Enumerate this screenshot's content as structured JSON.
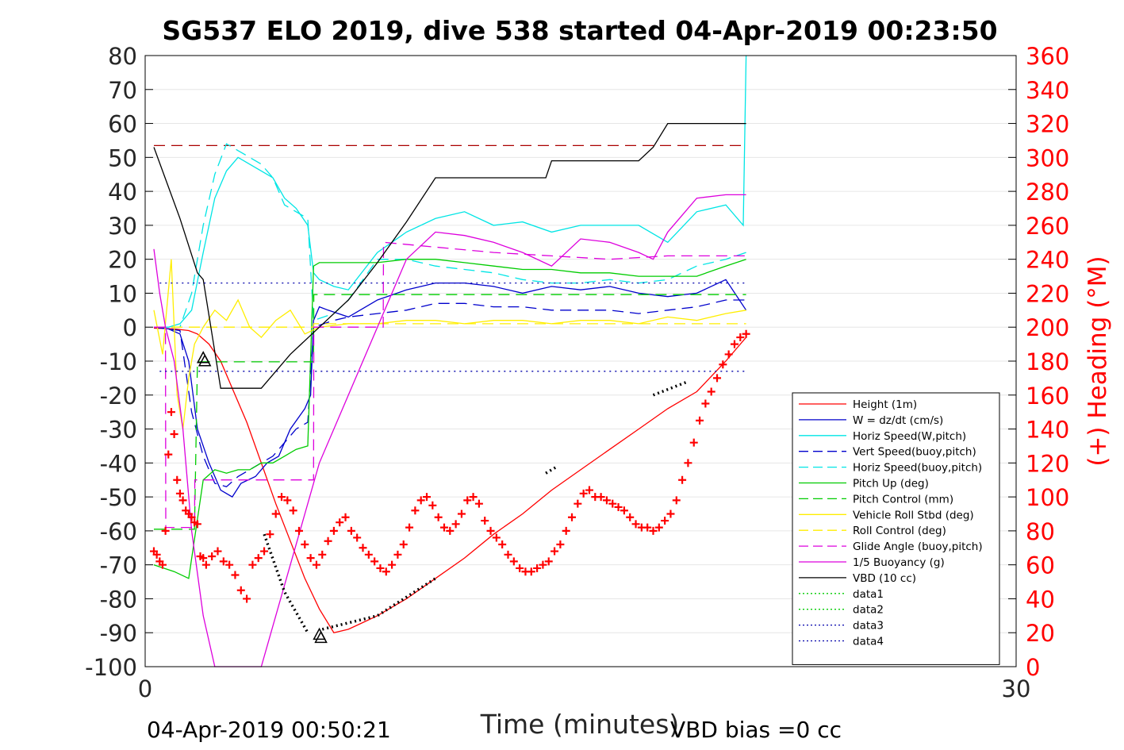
{
  "chart_data": {
    "type": "line",
    "title": "SG537 ELO 2019, dive 538 started 04-Apr-2019 00:23:50",
    "xlabel": "Time (minutes)",
    "ylabel": "",
    "y2label": "(+) Heading (°M)",
    "xlim": [
      0,
      30
    ],
    "ylim": [
      -100,
      80
    ],
    "y2lim": [
      0,
      360
    ],
    "x_ticks": [
      "0",
      "30"
    ],
    "y_ticks": [
      "80",
      "70",
      "60",
      "50",
      "40",
      "30",
      "20",
      "10",
      "0",
      "-10",
      "-20",
      "-30",
      "-40",
      "-50",
      "-60",
      "-70",
      "-80",
      "-90",
      "-100"
    ],
    "y2_ticks": [
      "360",
      "340",
      "320",
      "300",
      "280",
      "260",
      "240",
      "220",
      "200",
      "180",
      "160",
      "140",
      "120",
      "100",
      "80",
      "60",
      "40",
      "20",
      "0"
    ],
    "grid": true,
    "legend_position": "bottom-right",
    "footer_left": "04-Apr-2019 00:50:21",
    "footer_right": "VBD bias =0 cc",
    "series": [
      {
        "name": "Height (1m)",
        "color": "#ff0000",
        "style": "solid",
        "x": [
          0.3,
          1.0,
          1.5,
          1.8,
          2.2,
          2.6,
          3.0,
          3.5,
          4.0,
          4.5,
          5.0,
          5.5,
          6.0,
          6.5,
          7.0,
          7.5,
          8.0,
          9.0,
          10.0,
          11.0,
          12.0,
          13.0,
          14.0,
          15.0,
          16.0,
          17.0,
          18.0,
          19.0,
          20.0,
          20.7
        ],
        "y": [
          -0.3,
          -0.5,
          -1,
          -2,
          -5,
          -10,
          -18,
          -28,
          -40,
          -52,
          -63,
          -74,
          -83,
          -90,
          -89,
          -87,
          -85,
          -80,
          -74,
          -68,
          -61,
          -55,
          -48,
          -42,
          -36,
          -30,
          -24,
          -19,
          -10,
          -3
        ]
      },
      {
        "name": "W = dz/dt (cm/s)",
        "color": "#0000cc",
        "style": "solid",
        "x": [
          0.3,
          0.8,
          1.2,
          1.5,
          1.8,
          2.0,
          2.2,
          2.6,
          3.0,
          3.3,
          3.8,
          4.2,
          4.6,
          5.0,
          5.5,
          5.7,
          5.8,
          6.0,
          6.3,
          7.0,
          8.0,
          9.0,
          10.0,
          11.0,
          12.0,
          13.0,
          14.0,
          15.0,
          16.0,
          17.0,
          18.0,
          19.0,
          20.0,
          20.7
        ],
        "y": [
          0,
          -0.5,
          -2,
          -10,
          -30,
          -35,
          -40,
          -48,
          -50,
          -46,
          -44,
          -40,
          -38,
          -30,
          -24,
          -20,
          2,
          6,
          5,
          3,
          8,
          11,
          13,
          13,
          12,
          10,
          12,
          11,
          12,
          10,
          9,
          10,
          14,
          5
        ]
      },
      {
        "name": "Horiz Speed(W,pitch)",
        "color": "#00e5e5",
        "style": "solid",
        "x": [
          0.3,
          0.8,
          1.2,
          1.6,
          2.0,
          2.4,
          2.8,
          3.2,
          3.6,
          4.0,
          4.4,
          4.8,
          5.2,
          5.6,
          5.8,
          6.0,
          6.5,
          7.0,
          8.0,
          9.0,
          10.0,
          11.0,
          12.0,
          13.0,
          14.0,
          15.0,
          16.0,
          17.0,
          18.0,
          19.0,
          20.0,
          20.6,
          20.7
        ],
        "y": [
          0,
          0,
          1,
          5,
          22,
          38,
          46,
          50,
          48,
          46,
          44,
          38,
          35,
          30,
          16,
          14,
          12,
          11,
          22,
          28,
          32,
          34,
          30,
          31,
          28,
          30,
          30,
          30,
          25,
          34,
          36,
          30,
          80
        ]
      },
      {
        "name": "Vert Speed(buoy,pitch)",
        "color": "#0000cc",
        "style": "dashed",
        "x": [
          0.3,
          1.2,
          1.6,
          2.0,
          2.4,
          2.8,
          3.2,
          3.6,
          4.0,
          4.4,
          4.8,
          5.2,
          5.6,
          5.8,
          6.5,
          7.0,
          8.0,
          9.0,
          10.0,
          11.0,
          12.0,
          13.0,
          14.0,
          15.0,
          16.0,
          17.0,
          18.0,
          19.0,
          20.0,
          20.7
        ],
        "y": [
          0,
          -1,
          -25,
          -38,
          -46,
          -47,
          -44,
          -42,
          -40,
          -38,
          -34,
          -30,
          -28,
          0,
          2,
          3,
          4,
          5,
          7,
          7,
          6,
          6,
          5,
          5,
          5,
          4,
          5,
          6,
          8,
          8
        ]
      },
      {
        "name": "Horiz Speed(buoy,pitch)",
        "color": "#00e5e5",
        "style": "dashed",
        "x": [
          0.3,
          1.2,
          1.6,
          2.0,
          2.4,
          2.8,
          3.2,
          3.6,
          4.0,
          4.4,
          4.8,
          5.2,
          5.6,
          5.8,
          6.5,
          7.0,
          8.0,
          9.0,
          10.0,
          11.0,
          12.0,
          13.0,
          14.0,
          15.0,
          16.0,
          17.0,
          18.0,
          19.0,
          20.0,
          20.7
        ],
        "y": [
          0,
          0,
          10,
          30,
          45,
          54,
          52,
          50,
          48,
          44,
          36,
          34,
          32,
          2,
          4,
          8,
          20,
          20,
          18,
          17,
          16,
          14,
          13,
          13,
          14,
          13,
          14,
          18,
          20,
          22
        ]
      },
      {
        "name": "Pitch Up (deg)",
        "color": "#00cc00",
        "style": "solid",
        "x": [
          0.3,
          1.0,
          1.5,
          2.0,
          2.4,
          2.8,
          3.2,
          3.6,
          4.0,
          4.4,
          4.8,
          5.2,
          5.6,
          5.8,
          6.0,
          7.0,
          8.0,
          9.0,
          10.0,
          11.0,
          12.0,
          13.0,
          14.0,
          15.0,
          16.0,
          17.0,
          18.0,
          19.0,
          20.0,
          20.7
        ],
        "y": [
          -70,
          -72,
          -74,
          -45,
          -42,
          -43,
          -42,
          -42,
          -40,
          -40,
          -38,
          -36,
          -35,
          18,
          19,
          19,
          19,
          20,
          20,
          19,
          18,
          17,
          17,
          16,
          16,
          15,
          15,
          15,
          18,
          20
        ]
      },
      {
        "name": "Pitch Control (mm)",
        "color": "#00cc00",
        "style": "dashed",
        "x": [
          0.3,
          1.7,
          1.8,
          5.8,
          5.81,
          20.7
        ],
        "y": [
          -59.5,
          -59.5,
          -10.2,
          -10.2,
          9.6,
          9.6
        ]
      },
      {
        "name": "Vehicle Roll Stbd (deg)",
        "color": "#ffee00",
        "style": "solid",
        "x": [
          0.3,
          0.6,
          0.9,
          1.1,
          1.3,
          1.5,
          1.7,
          2.0,
          2.4,
          2.8,
          3.2,
          3.6,
          4.0,
          4.5,
          5.0,
          5.5,
          6.0,
          7.0,
          8.0,
          9.0,
          10.0,
          11.0,
          12.0,
          13.0,
          14.0,
          15.0,
          16.0,
          17.0,
          18.0,
          19.0,
          20.0,
          20.7
        ],
        "y": [
          5,
          -8,
          20,
          -20,
          -30,
          -15,
          -5,
          0,
          5,
          2,
          8,
          0,
          -3,
          2,
          5,
          -2,
          0,
          1,
          1,
          2,
          2,
          1,
          2,
          2,
          1,
          2,
          2,
          1,
          3,
          2,
          4,
          5
        ]
      },
      {
        "name": "Roll Control (deg)",
        "color": "#ffee00",
        "style": "dashed",
        "x": [
          0.3,
          5.8,
          5.81,
          20.7
        ],
        "y": [
          0,
          0,
          1,
          1
        ]
      },
      {
        "name": "Glide Angle (buoy,pitch)",
        "color": "#dd00dd",
        "style": "dashed",
        "x": [
          0.3,
          0.7,
          0.71,
          1.7,
          1.71,
          5.8,
          5.81,
          8.2,
          8.21,
          12.0,
          14.0,
          16.0,
          18.0,
          20.0,
          20.7
        ],
        "y": [
          0,
          0,
          -59,
          -59,
          -45,
          -45,
          0,
          0,
          25,
          22,
          21,
          20,
          21,
          21,
          21
        ]
      },
      {
        "name": "1/5 Buoyancy (g)",
        "color": "#dd00dd",
        "style": "solid",
        "x": [
          0.3,
          0.5,
          0.7,
          1.0,
          1.3,
          1.6,
          2.0,
          2.4,
          2.6,
          4.0,
          4.5,
          5.0,
          5.5,
          6.0,
          7.0,
          8.0,
          9.0,
          10.0,
          11.0,
          12.0,
          13.0,
          14.0,
          15.0,
          16.0,
          17.0,
          17.5,
          18.0,
          19.0,
          20.0,
          20.7
        ],
        "y": [
          23,
          10,
          0,
          -10,
          -30,
          -60,
          -85,
          -100,
          -100,
          -100,
          -85,
          -70,
          -55,
          -40,
          -20,
          0,
          20,
          28,
          27,
          25,
          22,
          18,
          26,
          25,
          22,
          20,
          28,
          38,
          39,
          39
        ]
      },
      {
        "name": "VBD (10 cc)",
        "color": "#000000",
        "style": "solid",
        "x": [
          0.3,
          1.2,
          1.8,
          2.0,
          2.6,
          4.0,
          5.0,
          6.0,
          7.0,
          8.0,
          9.0,
          10.0,
          12.0,
          13.0,
          13.8,
          14.0,
          15.0,
          17.0,
          17.5,
          18.0,
          19.0,
          20.0,
          20.7
        ],
        "y": [
          53,
          32,
          16,
          14,
          -18,
          -18,
          -8,
          0,
          8,
          19,
          31,
          44,
          44,
          44,
          44,
          49,
          49,
          49,
          53,
          60,
          60,
          60,
          60
        ]
      },
      {
        "name": "data1",
        "color": "#00cc00",
        "style": "dotted",
        "x": [],
        "y": []
      },
      {
        "name": "data2",
        "color": "#00cc00",
        "style": "dotted",
        "x": [],
        "y": []
      },
      {
        "name": "data3",
        "color": "#0000aa",
        "style": "dotted",
        "x": [
          0.5,
          20.7
        ],
        "y": [
          13,
          13
        ]
      },
      {
        "name": "data4",
        "color": "#0000aa",
        "style": "dotted",
        "x": [
          0.5,
          20.7
        ],
        "y": [
          -13,
          -13
        ]
      }
    ],
    "extra_lines": [
      {
        "color": "#aa0000",
        "style": "dashed",
        "x": [
          0.3,
          20.7
        ],
        "y": [
          53.5,
          53.5
        ]
      }
    ],
    "heading_points": {
      "marker": "+",
      "color": "#ff0000",
      "axis": "right",
      "x": [
        0.3,
        0.4,
        0.5,
        0.6,
        0.7,
        0.8,
        0.9,
        1.0,
        1.1,
        1.2,
        1.3,
        1.4,
        1.5,
        1.6,
        1.7,
        1.8,
        1.9,
        2.0,
        2.1,
        2.3,
        2.5,
        2.7,
        2.9,
        3.1,
        3.3,
        3.5,
        3.7,
        3.9,
        4.1,
        4.3,
        4.5,
        4.7,
        4.9,
        5.1,
        5.3,
        5.5,
        5.7,
        5.9,
        6.1,
        6.3,
        6.5,
        6.7,
        6.9,
        7.1,
        7.3,
        7.5,
        7.7,
        7.9,
        8.1,
        8.3,
        8.5,
        8.7,
        8.9,
        9.1,
        9.3,
        9.5,
        9.7,
        9.9,
        10.1,
        10.3,
        10.5,
        10.7,
        10.9,
        11.1,
        11.3,
        11.5,
        11.7,
        11.9,
        12.1,
        12.3,
        12.5,
        12.7,
        12.9,
        13.1,
        13.3,
        13.5,
        13.7,
        13.9,
        14.1,
        14.3,
        14.5,
        14.7,
        14.9,
        15.1,
        15.3,
        15.5,
        15.7,
        15.9,
        16.1,
        16.3,
        16.5,
        16.7,
        16.9,
        17.1,
        17.3,
        17.5,
        17.7,
        17.9,
        18.1,
        18.3,
        18.5,
        18.7,
        18.9,
        19.1,
        19.3,
        19.5,
        19.7,
        19.9,
        20.1,
        20.3,
        20.5,
        20.7
      ],
      "y": [
        68,
        66,
        62,
        60,
        80,
        125,
        150,
        137,
        110,
        102,
        98,
        92,
        90,
        88,
        85,
        84,
        65,
        64,
        60,
        65,
        68,
        62,
        60,
        54,
        45,
        40,
        60,
        64,
        68,
        78,
        90,
        100,
        98,
        92,
        80,
        72,
        64,
        60,
        66,
        74,
        80,
        85,
        88,
        80,
        76,
        70,
        66,
        62,
        58,
        56,
        60,
        66,
        72,
        82,
        92,
        98,
        100,
        95,
        88,
        82,
        80,
        84,
        90,
        98,
        100,
        96,
        86,
        80,
        76,
        72,
        66,
        62,
        58,
        56,
        56,
        58,
        60,
        62,
        68,
        72,
        80,
        88,
        96,
        102,
        104,
        100,
        100,
        98,
        96,
        94,
        92,
        88,
        84,
        82,
        82,
        80,
        82,
        86,
        90,
        98,
        110,
        120,
        132,
        145,
        155,
        162,
        170,
        178,
        184,
        190,
        194,
        196
      ]
    },
    "dotted_segments": [
      {
        "color": "#000000",
        "x": [
          4.1,
          4.8,
          5.6
        ],
        "y": [
          -61,
          -78,
          -90
        ]
      },
      {
        "color": "#000000",
        "x": [
          6.1,
          8.0,
          10.0
        ],
        "y": [
          -89,
          -85,
          -74
        ]
      },
      {
        "color": "#000000",
        "x": [
          13.8,
          14.2
        ],
        "y": [
          -43,
          -41
        ]
      },
      {
        "color": "#000000",
        "x": [
          17.5,
          18.7
        ],
        "y": [
          -20,
          -16
        ]
      }
    ],
    "triangles": [
      {
        "x": 2.0,
        "y": -9
      },
      {
        "x": 6.0,
        "y": -90.5
      }
    ]
  }
}
